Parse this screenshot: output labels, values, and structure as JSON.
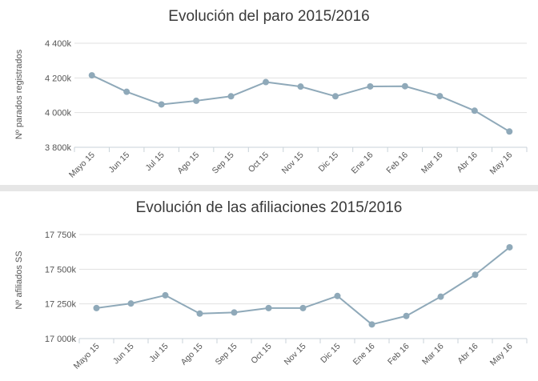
{
  "chart_data": [
    {
      "type": "line",
      "title": "Evolución del paro 2015/2016",
      "ylabel": "Nº parados registrados",
      "xlabel": "",
      "categories": [
        "Mayo 15",
        "Jun 15",
        "Jul 15",
        "Ago 15",
        "Sep 15",
        "Oct 15",
        "Nov 15",
        "Dic 15",
        "Ene 16",
        "Feb 16",
        "Mar 16",
        "Abr 16",
        "May 16"
      ],
      "series": [
        {
          "values": [
            4215000,
            4120000,
            4047000,
            4068000,
            4094000,
            4176000,
            4150000,
            4094000,
            4151000,
            4152000,
            4095000,
            4011000,
            3891000
          ]
        }
      ],
      "ylim": [
        3800000,
        4400000
      ],
      "yticks": [
        3800000,
        4000000,
        4200000,
        4400000
      ],
      "ytick_labels": [
        "3 800k",
        "4 000k",
        "4 200k",
        "4 400k"
      ],
      "grid": true,
      "color": "#8fa9b9"
    },
    {
      "type": "line",
      "title": "Evolución de las afiliaciones 2015/2016",
      "ylabel": "Nº afiliados SS",
      "xlabel": "",
      "categories": [
        "Mayo 15",
        "Jun 15",
        "Jul 15",
        "Ago 15",
        "Sep 15",
        "Oct 15",
        "Nov 15",
        "Dic 15",
        "Ene 16",
        "Feb 16",
        "Mar 16",
        "Abr 16",
        "May 16"
      ],
      "series": [
        {
          "values": [
            17220000,
            17253000,
            17312000,
            17180000,
            17188000,
            17220000,
            17220000,
            17307000,
            17102000,
            17163000,
            17302000,
            17460000,
            17658000
          ]
        }
      ],
      "ylim": [
        17000000,
        17750000
      ],
      "yticks": [
        17000000,
        17250000,
        17500000,
        17750000
      ],
      "ytick_labels": [
        "17 000k",
        "17 250k",
        "17 500k",
        "17 750k"
      ],
      "grid": true,
      "color": "#8fa9b9"
    }
  ]
}
